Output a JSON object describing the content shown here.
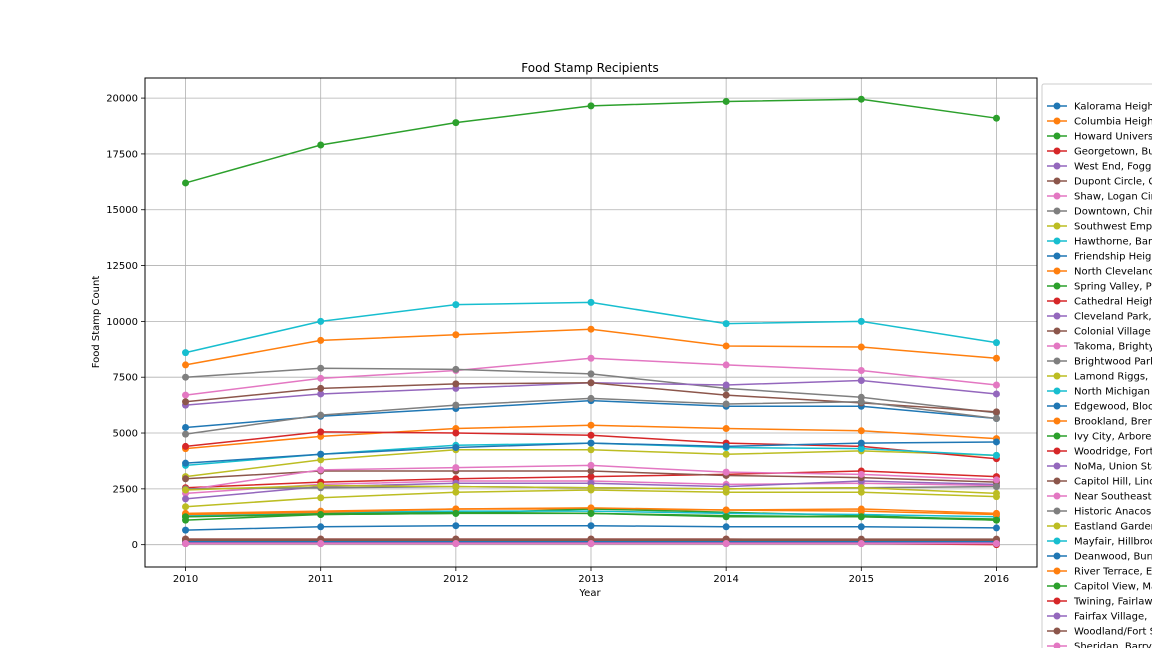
{
  "chart_data": {
    "type": "line",
    "title": "Food Stamp Recipients",
    "xlabel": "Year",
    "ylabel": "Food Stamp Count",
    "xlim": [
      2009.7,
      2016.3
    ],
    "ylim": [
      -1000,
      20900
    ],
    "x_ticks": [
      2010,
      2011,
      2012,
      2013,
      2014,
      2015,
      2016
    ],
    "y_ticks": [
      0,
      2500,
      5000,
      7500,
      10000,
      12500,
      15000,
      17500,
      20000
    ],
    "grid": true,
    "legend_position": "right (partially cut off)",
    "x": [
      2010,
      2011,
      2012,
      2013,
      2014,
      2015,
      2016
    ],
    "series": [
      {
        "name": "Kalorama Heigh",
        "color": "#1f77b4",
        "values": [
          5250,
          5750,
          6100,
          6450,
          6200,
          6200,
          5650
        ]
      },
      {
        "name": "Columbia Heigh",
        "color": "#ff7f0e",
        "values": [
          8050,
          9150,
          9400,
          9650,
          8900,
          8850,
          8350
        ]
      },
      {
        "name": "Howard Univers",
        "color": "#2ca02c",
        "values": [
          16200,
          17900,
          18900,
          19650,
          19850,
          19950,
          19100
        ]
      },
      {
        "name": "Georgetown, Bu",
        "color": "#d62728",
        "values": [
          250,
          250,
          250,
          250,
          250,
          200,
          50
        ]
      },
      {
        "name": "West End, Fogg",
        "color": "#9467bd",
        "values": [
          100,
          100,
          100,
          100,
          100,
          100,
          100
        ]
      },
      {
        "name": "Dupont Circle, C",
        "color": "#8c564b",
        "values": [
          250,
          250,
          250,
          250,
          250,
          250,
          250
        ]
      },
      {
        "name": "Shaw, Logan Cir",
        "color": "#e377c2",
        "values": [
          6700,
          7450,
          7800,
          8350,
          8050,
          7800,
          7150
        ]
      },
      {
        "name": "Downtown, Chin",
        "color": "#7f7f7f",
        "values": [
          7500,
          7900,
          7850,
          7650,
          7000,
          6600,
          5900
        ]
      },
      {
        "name": "Southwest Emp",
        "color": "#bcbd22",
        "values": [
          3050,
          3800,
          4250,
          4250,
          4050,
          4200,
          4000
        ]
      },
      {
        "name": "Hawthorne, Bar",
        "color": "#17becf",
        "values": [
          8600,
          10000,
          10750,
          10850,
          9900,
          10000,
          9050
        ]
      },
      {
        "name": "Friendship Heig",
        "color": "#1f77b4",
        "values": [
          650,
          800,
          850,
          850,
          800,
          800,
          750
        ]
      },
      {
        "name": "North Clevelanc",
        "color": "#ff7f0e",
        "values": [
          4300,
          4850,
          5200,
          5350,
          5200,
          5100,
          4750
        ]
      },
      {
        "name": "Spring Valley, P",
        "color": "#2ca02c",
        "values": [
          1250,
          1400,
          1450,
          1400,
          1300,
          1250,
          1150
        ]
      },
      {
        "name": "Cathedral Heigh",
        "color": "#d62728",
        "values": [
          4400,
          5050,
          5000,
          4900,
          4550,
          4400,
          3850
        ]
      },
      {
        "name": "Cleveland Park,",
        "color": "#9467bd",
        "values": [
          6250,
          6750,
          7000,
          7250,
          7150,
          7350,
          6750
        ]
      },
      {
        "name": "Colonial Village",
        "color": "#8c564b",
        "values": [
          6400,
          7000,
          7200,
          7250,
          6700,
          6350,
          5950
        ]
      },
      {
        "name": "Takoma, Brighty",
        "color": "#e377c2",
        "values": [
          2300,
          2700,
          2850,
          2850,
          2700,
          2750,
          2650
        ]
      },
      {
        "name": "Brightwood Park",
        "color": "#7f7f7f",
        "values": [
          4950,
          5800,
          6250,
          6550,
          6300,
          6400,
          5650
        ]
      },
      {
        "name": "Lamond Riggs,",
        "color": "#bcbd22",
        "values": [
          1700,
          2100,
          2350,
          2450,
          2350,
          2350,
          2150
        ]
      },
      {
        "name": "North Michigan",
        "color": "#17becf",
        "values": [
          3550,
          4050,
          4450,
          4550,
          4350,
          4300,
          4000
        ]
      },
      {
        "name": "Edgewood, Bloc",
        "color": "#1f77b4",
        "values": [
          3650,
          4050,
          4350,
          4550,
          4400,
          4550,
          4600
        ]
      },
      {
        "name": "Brookland, Brer",
        "color": "#ff7f0e",
        "values": [
          1400,
          1500,
          1600,
          1600,
          1550,
          1600,
          1400
        ]
      },
      {
        "name": "Ivy City, Arbore",
        "color": "#2ca02c",
        "values": [
          1100,
          1350,
          1400,
          1600,
          1450,
          1300,
          1100
        ]
      },
      {
        "name": "Woodridge, Fort",
        "color": "#d62728",
        "values": [
          2550,
          2800,
          2950,
          3050,
          3150,
          3300,
          3050
        ]
      },
      {
        "name": "NoMa, Union Sta",
        "color": "#9467bd",
        "values": [
          2050,
          2600,
          2750,
          2750,
          2600,
          2850,
          2700
        ]
      },
      {
        "name": "Capitol Hill, Linc",
        "color": "#8c564b",
        "values": [
          2950,
          3300,
          3300,
          3300,
          3100,
          3000,
          2800
        ]
      },
      {
        "name": "Near Southeast",
        "color": "#e377c2",
        "values": [
          2450,
          3350,
          3450,
          3550,
          3250,
          3150,
          2900
        ]
      },
      {
        "name": "Historic Anacos",
        "color": "#7f7f7f",
        "values": [
          2500,
          2550,
          2600,
          2550,
          2500,
          2550,
          2600
        ]
      },
      {
        "name": "Eastland Garder",
        "color": "#bcbd22",
        "values": [
          2450,
          2650,
          2600,
          2550,
          2500,
          2550,
          2300
        ]
      },
      {
        "name": "Mayfair, Hillbroo",
        "color": "#17becf",
        "values": [
          1300,
          1450,
          1500,
          1500,
          1400,
          1350,
          1250
        ]
      },
      {
        "name": "Deanwood, Burr",
        "color": "#1f77b4",
        "values": [
          150,
          150,
          150,
          150,
          150,
          150,
          150
        ]
      },
      {
        "name": "River Terrace, E",
        "color": "#ff7f0e",
        "values": [
          1350,
          1450,
          1600,
          1650,
          1550,
          1500,
          1350
        ]
      },
      {
        "name": "Capitol View, Ma",
        "color": "#2ca02c",
        "values": [
          1250,
          1350,
          1400,
          1400,
          1250,
          1250,
          1100
        ]
      },
      {
        "name": "Twining, Fairlaw",
        "color": "#d62728",
        "values": [
          50,
          50,
          50,
          50,
          50,
          50,
          0
        ]
      },
      {
        "name": "Fairfax Village,",
        "color": "#9467bd",
        "values": [
          50,
          50,
          50,
          50,
          50,
          50,
          50
        ]
      },
      {
        "name": "Woodland/Fort S",
        "color": "#8c564b",
        "values": [
          200,
          200,
          200,
          200,
          200,
          200,
          200
        ]
      },
      {
        "name": "Sheridan, Barry",
        "color": "#e377c2",
        "values": [
          50,
          50,
          50,
          50,
          50,
          50,
          50
        ]
      }
    ]
  }
}
